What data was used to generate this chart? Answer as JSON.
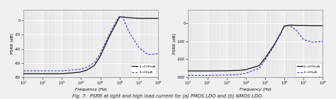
{
  "fig_title": "Fig. 7.  PSRR at light and high load current for (a) PMOS LDO and (b) NMOS LDO.",
  "subplot_a": {
    "label": "(a)",
    "xlabel": "Frequency (Hz)",
    "ylabel": "PSRR (dB)",
    "xlim": [
      10,
      100000000.0
    ],
    "ylim": [
      -80,
      15
    ],
    "yticks": [
      -80,
      -60,
      -40,
      -20,
      0
    ],
    "ytick_labels": [
      "-80",
      "-60",
      "-40",
      "-20",
      "0"
    ],
    "legend_solid": "$I_L$=100mA",
    "legend_dashed": "$I_L$=50μA",
    "solid_x": [
      10,
      50,
      100,
      300,
      1000,
      3000,
      8000,
      20000.0,
      50000.0,
      100000.0,
      300000.0,
      700000.0,
      1000000.0,
      1500000.0,
      3000000.0,
      10000000.0,
      100000000.0
    ],
    "solid_y": [
      -75,
      -75,
      -75,
      -75,
      -75,
      -74,
      -73,
      -70,
      -63,
      -50,
      -22,
      -3,
      5,
      5,
      4,
      3,
      3
    ],
    "dashed_x": [
      10,
      50,
      100,
      300,
      1000,
      3000,
      8000,
      20000.0,
      50000.0,
      100000.0,
      300000.0,
      700000.0,
      1000000.0,
      1500000.0,
      3000000.0,
      10000000.0,
      30000000.0,
      100000000.0
    ],
    "dashed_y": [
      -71,
      -71,
      -71,
      -71,
      -71,
      -70,
      -69,
      -66,
      -59,
      -46,
      -19,
      0,
      6,
      4,
      -15,
      -38,
      -48,
      -47
    ]
  },
  "subplot_b": {
    "label": "(b)",
    "xlabel": "Frequency (Hz)",
    "ylabel": "PSRR (dB)",
    "xlim": [
      10,
      100000000.0
    ],
    "ylim": [
      -300,
      75
    ],
    "yticks": [
      -300,
      -200,
      -100,
      0
    ],
    "ytick_labels": [
      "-300",
      "-200",
      "-100",
      "0"
    ],
    "legend_solid": "$I_L$=100mA",
    "legend_dashed": "$I_L$<50μA",
    "solid_x": [
      10,
      100,
      1000,
      5000,
      10000.0,
      50000.0,
      100000.0,
      300000.0,
      700000.0,
      1000000.0,
      2000000.0,
      5000000.0,
      10000000.0,
      30000000.0,
      100000000.0
    ],
    "solid_y": [
      -265,
      -265,
      -264,
      -262,
      -258,
      -235,
      -195,
      -120,
      -50,
      -15,
      -10,
      -12,
      -12,
      -13,
      -13
    ],
    "dashed_x": [
      10,
      100,
      1000,
      5000,
      10000.0,
      50000.0,
      100000.0,
      300000.0,
      700000.0,
      1000000.0,
      2000000.0,
      5000000.0,
      10000000.0,
      30000000.0,
      100000000.0
    ],
    "dashed_y": [
      -290,
      -290,
      -288,
      -284,
      -278,
      -250,
      -205,
      -125,
      -52,
      -18,
      -12,
      -45,
      -90,
      -105,
      -100
    ]
  },
  "solid_color": "#111111",
  "dashed_color": "#2222cc",
  "bg_color": "#e8e8e8",
  "grid_color": "#ffffff",
  "fig_bg": "#f0f0f0",
  "fig_title_fontsize": 4.8,
  "axis_label_fontsize": 4.2,
  "tick_fontsize": 3.5,
  "legend_fontsize": 3.2,
  "sublabel_fontsize": 5.0
}
